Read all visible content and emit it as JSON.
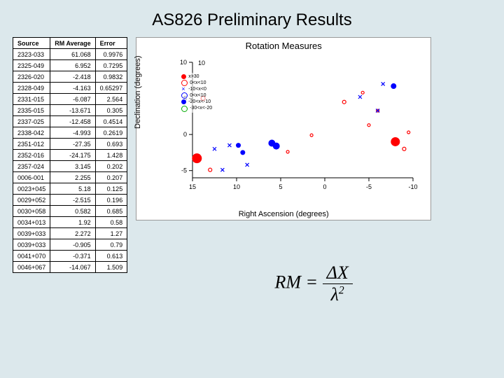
{
  "title": "AS826 Preliminary Results",
  "table": {
    "headers": [
      "Source",
      "RM Average",
      "Error"
    ],
    "rows": [
      [
        "2323-033",
        "61.068",
        "0.9976"
      ],
      [
        "2325-049",
        "6.952",
        "0.7295"
      ],
      [
        "2326-020",
        "-2.418",
        "0.9832"
      ],
      [
        "2328-049",
        "-4.163",
        "0.65297"
      ],
      [
        "2331-015",
        "-6.087",
        "2.564"
      ],
      [
        "2335-015",
        "-13.671",
        "0.305"
      ],
      [
        "2337-025",
        "-12.458",
        "0.4514"
      ],
      [
        "2338-042",
        "-4.993",
        "0.2619"
      ],
      [
        "2351-012",
        "-27.35",
        "0.693"
      ],
      [
        "2352-016",
        "-24.175",
        "1.428"
      ],
      [
        "2357-024",
        "3.145",
        "0.202"
      ],
      [
        "0006-001",
        "2.255",
        "0.207"
      ],
      [
        "0023+045",
        "5.18",
        "0.125"
      ],
      [
        "0029+052",
        "-2.515",
        "0.196"
      ],
      [
        "0030+058",
        "0.582",
        "0.685"
      ],
      [
        "0034+013",
        "1.92",
        "0.58"
      ],
      [
        "0039+033",
        "2.272",
        "1.27"
      ],
      [
        "0039+033",
        "-0.905",
        "0.79"
      ],
      [
        "0041+070",
        "-0.371",
        "0.613"
      ],
      [
        "0046+067",
        "-14.067",
        "1.509"
      ]
    ]
  },
  "chart": {
    "title": "Rotation Measures",
    "xlabel": "Right Ascension (degrees)",
    "ylabel": "Declination (degrees)",
    "xlim": [
      15,
      -10
    ],
    "ylim": [
      -6,
      10
    ],
    "xticks": [
      15,
      10,
      5,
      0,
      -5,
      -10
    ],
    "yticks": [
      -5,
      0,
      5,
      10
    ],
    "ytick_label_top": "10",
    "background": "#ffffff",
    "grid_color": "#000000",
    "legend": [
      {
        "label": "x>30",
        "color": "#ff0000",
        "marker": "circle-filled"
      },
      {
        "label": "0<x<10",
        "color": "#ff0000",
        "marker": "circle-open"
      },
      {
        "label": "-10<x<0",
        "color": "#0000ff",
        "marker": "x"
      },
      {
        "label": "0<x<10",
        "color": "#0000ff",
        "marker": "circle-open"
      },
      {
        "label": "-20<x<-10",
        "color": "#0000ff",
        "marker": "circle-filled"
      },
      {
        "label": "-30<x<-20",
        "color": "#00aa00",
        "marker": "circle-open"
      }
    ],
    "points": [
      {
        "ra": 14.5,
        "dec": -3.3,
        "color": "#ff0000",
        "marker": "filled",
        "size": 14
      },
      {
        "ra": 13.8,
        "dec": 5.0,
        "color": "#ff0000",
        "marker": "open",
        "size": 6
      },
      {
        "ra": 13.0,
        "dec": -4.9,
        "color": "#ff0000",
        "marker": "open",
        "size": 5
      },
      {
        "ra": 12.5,
        "dec": -2.0,
        "color": "#0000ff",
        "marker": "x",
        "size": 5
      },
      {
        "ra": 11.6,
        "dec": -4.9,
        "color": "#0000ff",
        "marker": "x",
        "size": 5
      },
      {
        "ra": 10.8,
        "dec": -1.5,
        "color": "#0000ff",
        "marker": "x",
        "size": 5
      },
      {
        "ra": 9.8,
        "dec": -1.5,
        "color": "#0000ff",
        "marker": "filled",
        "size": 7
      },
      {
        "ra": 9.3,
        "dec": -2.5,
        "color": "#0000ff",
        "marker": "filled",
        "size": 7
      },
      {
        "ra": 8.8,
        "dec": -4.2,
        "color": "#0000ff",
        "marker": "x",
        "size": 5
      },
      {
        "ra": 6.0,
        "dec": -1.2,
        "color": "#0000ff",
        "marker": "filled",
        "size": 10
      },
      {
        "ra": 5.5,
        "dec": -1.6,
        "color": "#0000ff",
        "marker": "filled",
        "size": 10
      },
      {
        "ra": 4.2,
        "dec": -2.4,
        "color": "#ff0000",
        "marker": "open",
        "size": 4
      },
      {
        "ra": 1.5,
        "dec": -0.1,
        "color": "#ff0000",
        "marker": "open",
        "size": 4
      },
      {
        "ra": -2.2,
        "dec": 4.5,
        "color": "#ff0000",
        "marker": "open",
        "size": 5
      },
      {
        "ra": -4.0,
        "dec": 5.2,
        "color": "#0000ff",
        "marker": "x",
        "size": 5
      },
      {
        "ra": -4.3,
        "dec": 5.8,
        "color": "#ff0000",
        "marker": "open",
        "size": 4
      },
      {
        "ra": -5.0,
        "dec": 1.3,
        "color": "#ff0000",
        "marker": "open",
        "size": 4
      },
      {
        "ra": -6.0,
        "dec": 3.3,
        "color": "#ff0000",
        "marker": "open",
        "size": 4
      },
      {
        "ra": -6.0,
        "dec": 3.3,
        "color": "#0000ff",
        "marker": "x",
        "size": 5
      },
      {
        "ra": -6.6,
        "dec": 7.0,
        "color": "#0000ff",
        "marker": "x",
        "size": 5
      },
      {
        "ra": -7.8,
        "dec": 6.7,
        "color": "#0000ff",
        "marker": "filled",
        "size": 8
      },
      {
        "ra": -8,
        "dec": -1.0,
        "color": "#ff0000",
        "marker": "filled",
        "size": 13
      },
      {
        "ra": -9.0,
        "dec": -2.0,
        "color": "#ff0000",
        "marker": "open",
        "size": 5
      },
      {
        "ra": -9.5,
        "dec": 0.3,
        "color": "#ff0000",
        "marker": "open",
        "size": 4
      }
    ]
  },
  "formula": {
    "lhs": "RM",
    "num": "ΔX",
    "den_base": "λ",
    "den_exp": "2"
  }
}
